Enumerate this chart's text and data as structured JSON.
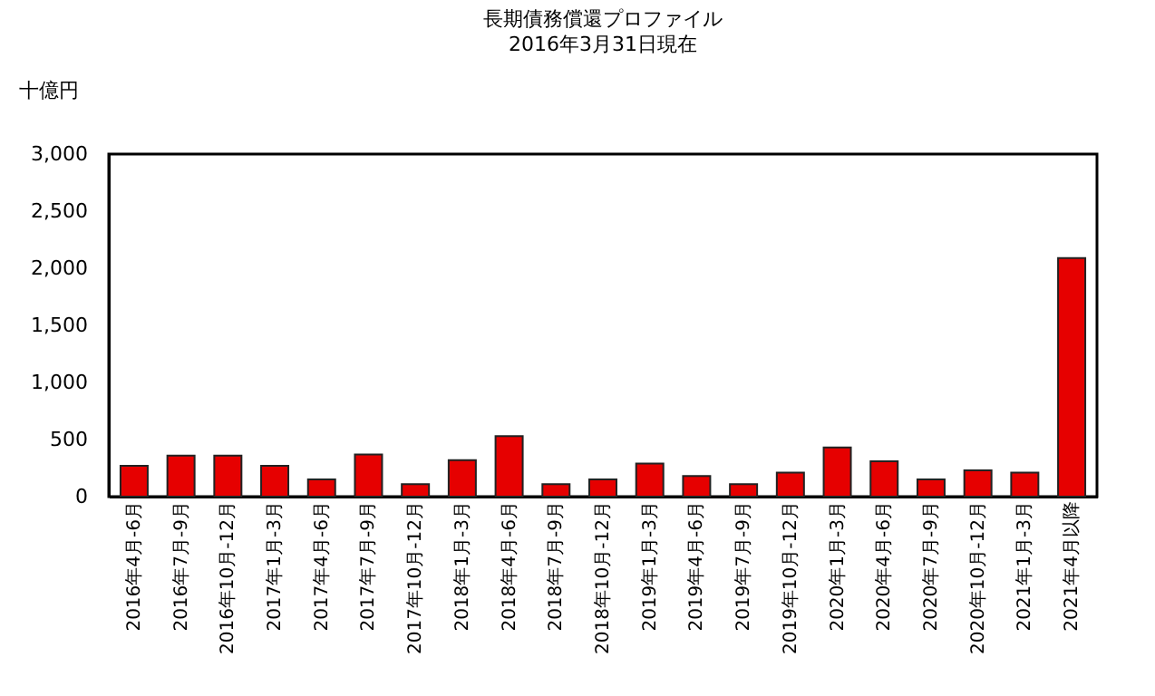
{
  "chart_data": {
    "type": "bar",
    "title": "長期債務償還プロファイル",
    "subtitle": "2016年3月31日現在",
    "ylabel": "十億円",
    "categories": [
      "2016年4月-6月",
      "2016年7月-9月",
      "2016年10月-12月",
      "2017年1月-3月",
      "2017年4月-6月",
      "2017年7月-9月",
      "2017年10月-12月",
      "2018年1月-3月",
      "2018年4月-6月",
      "2018年7月-9月",
      "2018年10月-12月",
      "2019年1月-3月",
      "2019年4月-6月",
      "2019年7月-9月",
      "2019年10月-12月",
      "2020年1月-3月",
      "2020年4月-6月",
      "2020年7月-9月",
      "2020年10月-12月",
      "2021年1月-3月",
      "2021年4月以降"
    ],
    "values": [
      270,
      360,
      360,
      270,
      150,
      370,
      110,
      320,
      530,
      110,
      150,
      290,
      180,
      110,
      210,
      430,
      310,
      150,
      230,
      210,
      2090
    ],
    "color": "#e60000",
    "ylim": [
      0,
      3000
    ],
    "yticks": [
      0,
      500,
      {
        "value": 1000,
        "label": "1,000"
      },
      {
        "value": 1500,
        "label": "1,500"
      },
      {
        "value": 2000,
        "label": "2,000"
      },
      {
        "value": 2500,
        "label": "2,500"
      },
      {
        "value": 3000,
        "label": "3,000"
      }
    ],
    "grid": false
  }
}
